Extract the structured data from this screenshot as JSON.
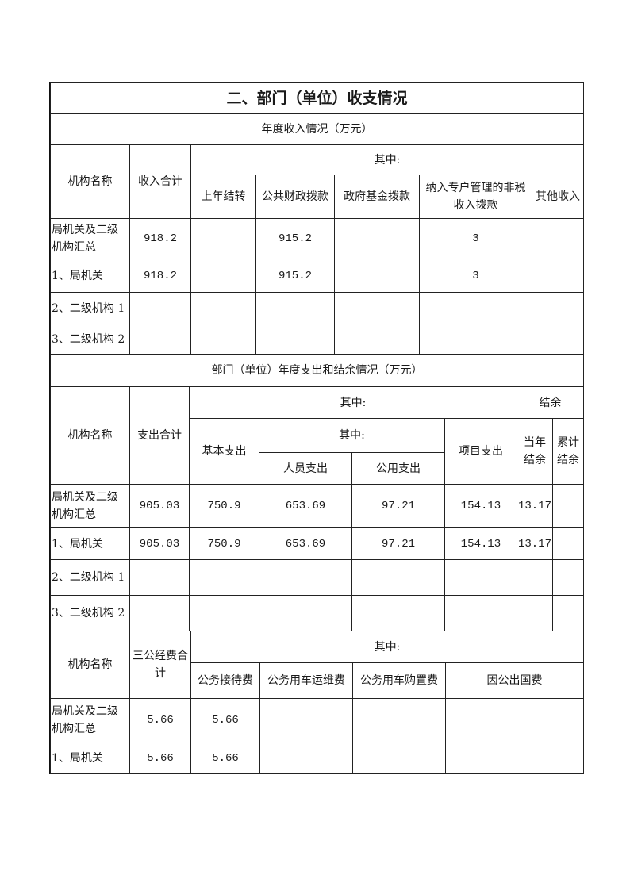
{
  "title": "二、部门（单位）收支情况",
  "income": {
    "caption": "年度收入情况（万元）",
    "headers": {
      "org": "机构名称",
      "total": "收入合计",
      "of_which": "其中:",
      "cols": [
        "上年结转",
        "公共财政拨款",
        "政府基金拨款",
        "纳入专户管理的非税收入拨款",
        "其他收入"
      ]
    },
    "rows": [
      {
        "name": "局机关及二级机构汇总",
        "total": "918.2",
        "c0": "",
        "c1": "915.2",
        "c2": "",
        "c3": "3",
        "c4": ""
      },
      {
        "name": "1、局机关",
        "total": "918.2",
        "c0": "",
        "c1": "915.2",
        "c2": "",
        "c3": "3",
        "c4": ""
      },
      {
        "name": "2、二级机构 1",
        "total": "",
        "c0": "",
        "c1": "",
        "c2": "",
        "c3": "",
        "c4": ""
      },
      {
        "name": "3、二级机构 2",
        "total": "",
        "c0": "",
        "c1": "",
        "c2": "",
        "c3": "",
        "c4": ""
      }
    ]
  },
  "expense": {
    "caption": "部门（单位）年度支出和结余情况（万元）",
    "headers": {
      "org": "机构名称",
      "total": "支出合计",
      "of_which": "其中:",
      "basic": "基本支出",
      "of_which_sub": "其中:",
      "personnel": "人员支出",
      "public": "公用支出",
      "project": "项目支出",
      "balance": "结余",
      "current_balance": "当年结余",
      "cumulative_balance": "累计结余"
    },
    "rows": [
      {
        "name": "局机关及二级机构汇总",
        "total": "905.03",
        "basic": "750.9",
        "personnel": "653.69",
        "public": "97.21",
        "project": "154.13",
        "current": "13.17",
        "cumulative": ""
      },
      {
        "name": "1、局机关",
        "total": "905.03",
        "basic": "750.9",
        "personnel": "653.69",
        "public": "97.21",
        "project": "154.13",
        "current": "13.17",
        "cumulative": ""
      },
      {
        "name": "2、二级机构 1",
        "total": "",
        "basic": "",
        "personnel": "",
        "public": "",
        "project": "",
        "current": "",
        "cumulative": ""
      },
      {
        "name": "3、二级机构 2",
        "total": "",
        "basic": "",
        "personnel": "",
        "public": "",
        "project": "",
        "current": "",
        "cumulative": ""
      }
    ]
  },
  "three_public": {
    "headers": {
      "org": "机构名称",
      "total": "三公经费合计",
      "of_which": "其中:",
      "cols": [
        "公务接待费",
        "公务用车运维费",
        "公务用车购置费",
        "因公出国费"
      ]
    },
    "rows": [
      {
        "name": "局机关及二级机构汇总",
        "total": "5.66",
        "c0": "5.66",
        "c1": "",
        "c2": "",
        "c3": ""
      },
      {
        "name": "1、局机关",
        "total": "5.66",
        "c0": "5.66",
        "c1": "",
        "c2": "",
        "c3": ""
      }
    ]
  }
}
